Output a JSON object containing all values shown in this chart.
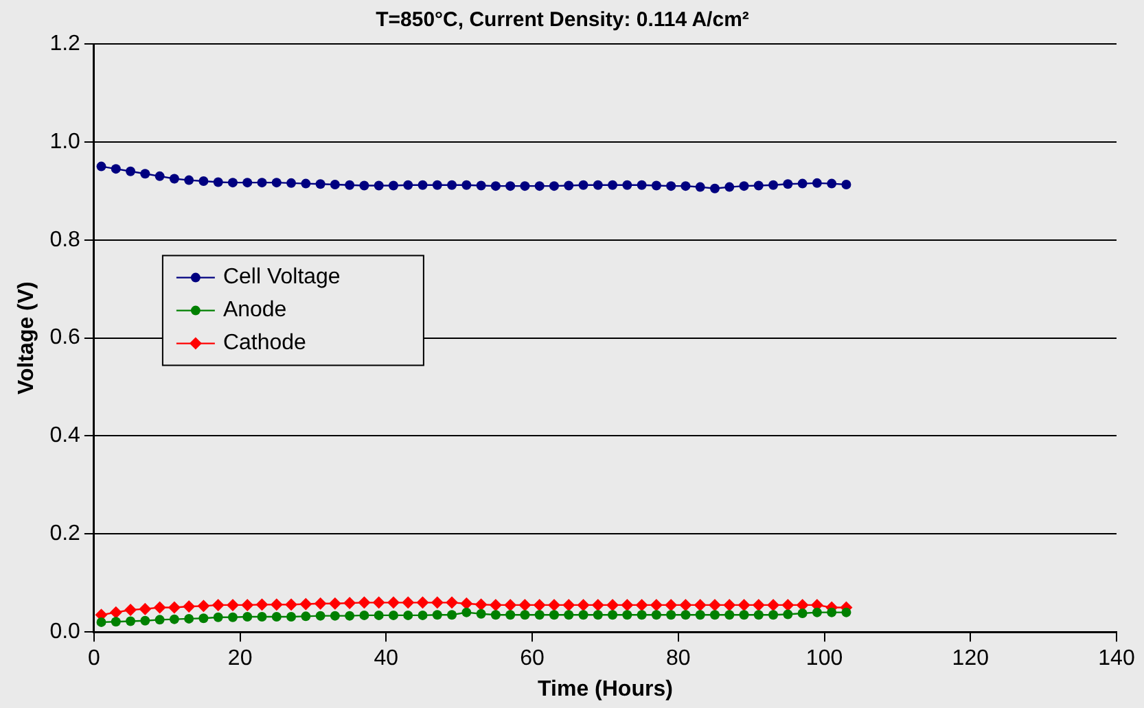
{
  "chart_data": {
    "type": "line",
    "title": "T=850°C, Current Density: 0.114 A/cm²",
    "xlabel": "Time (Hours)",
    "ylabel": "Voltage (V)",
    "x": [
      1,
      3,
      5,
      7,
      9,
      11,
      13,
      15,
      17,
      19,
      21,
      23,
      25,
      27,
      29,
      31,
      33,
      35,
      37,
      39,
      41,
      43,
      45,
      47,
      49,
      51,
      53,
      55,
      57,
      59,
      61,
      63,
      65,
      67,
      69,
      71,
      73,
      75,
      77,
      79,
      81,
      83,
      85,
      87,
      89,
      91,
      93,
      95,
      97,
      99,
      101,
      103
    ],
    "series": [
      {
        "name": "Cell Voltage",
        "color": "#000080",
        "marker": "circle",
        "values": [
          0.95,
          0.945,
          0.94,
          0.935,
          0.93,
          0.925,
          0.922,
          0.92,
          0.918,
          0.917,
          0.917,
          0.917,
          0.917,
          0.916,
          0.915,
          0.914,
          0.913,
          0.912,
          0.911,
          0.911,
          0.911,
          0.912,
          0.912,
          0.912,
          0.912,
          0.912,
          0.911,
          0.91,
          0.91,
          0.91,
          0.91,
          0.91,
          0.911,
          0.912,
          0.912,
          0.912,
          0.912,
          0.912,
          0.911,
          0.91,
          0.91,
          0.908,
          0.905,
          0.908,
          0.91,
          0.911,
          0.912,
          0.914,
          0.915,
          0.916,
          0.915,
          0.913
        ]
      },
      {
        "name": "Anode",
        "color": "#008000",
        "marker": "circle",
        "values": [
          0.02,
          0.021,
          0.022,
          0.023,
          0.025,
          0.026,
          0.027,
          0.028,
          0.03,
          0.03,
          0.031,
          0.031,
          0.031,
          0.031,
          0.032,
          0.033,
          0.033,
          0.033,
          0.034,
          0.034,
          0.034,
          0.034,
          0.034,
          0.035,
          0.035,
          0.04,
          0.037,
          0.035,
          0.035,
          0.035,
          0.035,
          0.035,
          0.035,
          0.035,
          0.035,
          0.035,
          0.035,
          0.035,
          0.035,
          0.035,
          0.035,
          0.035,
          0.035,
          0.035,
          0.035,
          0.035,
          0.035,
          0.036,
          0.038,
          0.04,
          0.04,
          0.04
        ]
      },
      {
        "name": "Cathode",
        "color": "#ff0000",
        "marker": "diamond",
        "values": [
          0.035,
          0.04,
          0.045,
          0.047,
          0.05,
          0.05,
          0.052,
          0.053,
          0.055,
          0.055,
          0.055,
          0.056,
          0.056,
          0.056,
          0.057,
          0.058,
          0.058,
          0.059,
          0.06,
          0.06,
          0.06,
          0.06,
          0.06,
          0.06,
          0.06,
          0.058,
          0.056,
          0.055,
          0.055,
          0.055,
          0.055,
          0.055,
          0.055,
          0.055,
          0.055,
          0.055,
          0.055,
          0.055,
          0.055,
          0.055,
          0.055,
          0.055,
          0.055,
          0.055,
          0.055,
          0.055,
          0.055,
          0.055,
          0.055,
          0.055,
          0.05,
          0.05
        ]
      }
    ],
    "xlim": [
      0,
      140
    ],
    "xticks": [
      0,
      20,
      40,
      60,
      80,
      100,
      120,
      140
    ],
    "ylim": [
      0,
      1.2
    ],
    "yticks": [
      {
        "value": 0,
        "label": "0.0"
      },
      {
        "value": 0.2,
        "label": "0.2"
      },
      {
        "value": 0.4,
        "label": "0.4"
      },
      {
        "value": 0.6,
        "label": "0.6"
      },
      {
        "value": 0.8,
        "label": "0.8"
      },
      {
        "value": 1,
        "label": "1.0"
      },
      {
        "value": 1.2,
        "label": "1.2"
      }
    ],
    "grid": "y",
    "legend": "left"
  }
}
